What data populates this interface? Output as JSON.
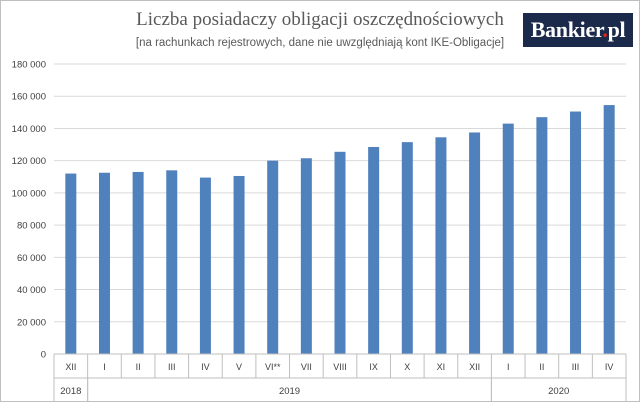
{
  "header": {
    "title": "Liczba posiadaczy obligacji oszczędnościowych",
    "subtitle": "[na rachunkach rejestrowych, dane nie uwzględniają kont IKE-Obligacje]",
    "logo": {
      "main": "Bankier",
      "dot": ".",
      "suffix": "pl"
    }
  },
  "chart_data": {
    "type": "bar",
    "title": "Liczba posiadaczy obligacji oszczędnościowych",
    "subtitle": "[na rachunkach rejestrowych, dane nie uwzględniają kont IKE-Obligacje]",
    "categories": [
      "XII",
      "I",
      "II",
      "III",
      "IV",
      "V",
      "VI**",
      "VII",
      "VIII",
      "IX",
      "X",
      "XI",
      "XII",
      "I",
      "II",
      "III",
      "IV"
    ],
    "values": [
      112000,
      112500,
      113000,
      114000,
      109500,
      110500,
      120000,
      121500,
      125500,
      128500,
      131500,
      134500,
      137500,
      143000,
      147000,
      150500,
      154500
    ],
    "groups": [
      {
        "label": "2018",
        "count": 1
      },
      {
        "label": "2019",
        "count": 12
      },
      {
        "label": "2020",
        "count": 4
      }
    ],
    "ylim": [
      0,
      180000
    ],
    "yticks": [
      0,
      20000,
      40000,
      60000,
      80000,
      100000,
      120000,
      140000,
      160000,
      180000
    ],
    "ytick_labels": [
      "0",
      "20 000",
      "40 000",
      "60 000",
      "80 000",
      "100 000",
      "120 000",
      "140 000",
      "160 000",
      "180 000"
    ],
    "grid": true,
    "bar_color": "#4f81bd",
    "grid_color": "#d9d9d9",
    "axis_color": "#bfbfbf"
  }
}
